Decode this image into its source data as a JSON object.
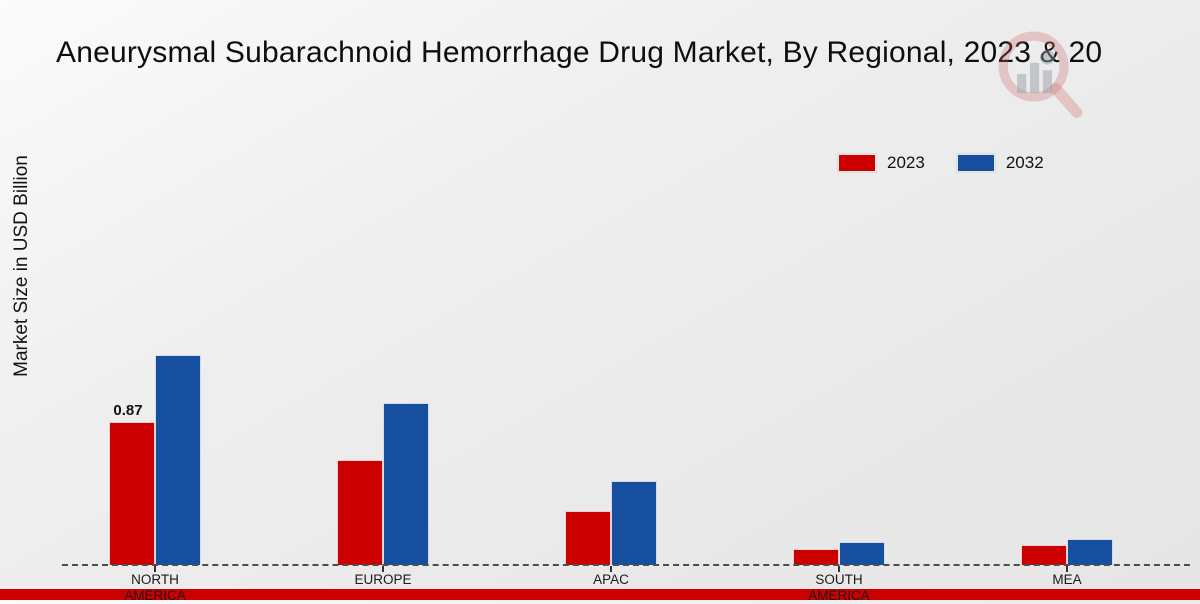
{
  "chart_data": {
    "type": "bar",
    "title": "Aneurysmal Subarachnoid Hemorrhage Drug Market, By Regional, 2023 & 20",
    "ylabel": "Market Size in USD Billion",
    "xlabel": "",
    "categories": [
      "NORTH AMERICA",
      "EUROPE",
      "APAC",
      "SOUTH AMERICA",
      "MEA"
    ],
    "series": [
      {
        "name": "2023",
        "color": "#cc0000",
        "values": [
          0.87,
          0.64,
          0.33,
          0.1,
          0.12
        ]
      },
      {
        "name": "2032",
        "color": "#164f9e",
        "values": [
          1.28,
          0.99,
          0.51,
          0.14,
          0.16
        ]
      }
    ],
    "annotations": [
      {
        "series": "2023",
        "category": "NORTH AMERICA",
        "text": "0.87"
      }
    ],
    "ylim": [
      0,
      1.4
    ],
    "grid": false,
    "legend_position": "top-right",
    "baseline_style": "dashed"
  },
  "footer": {
    "band_color": "#cc0000"
  },
  "watermark_icon": "magnifier-bar-chart-logo"
}
